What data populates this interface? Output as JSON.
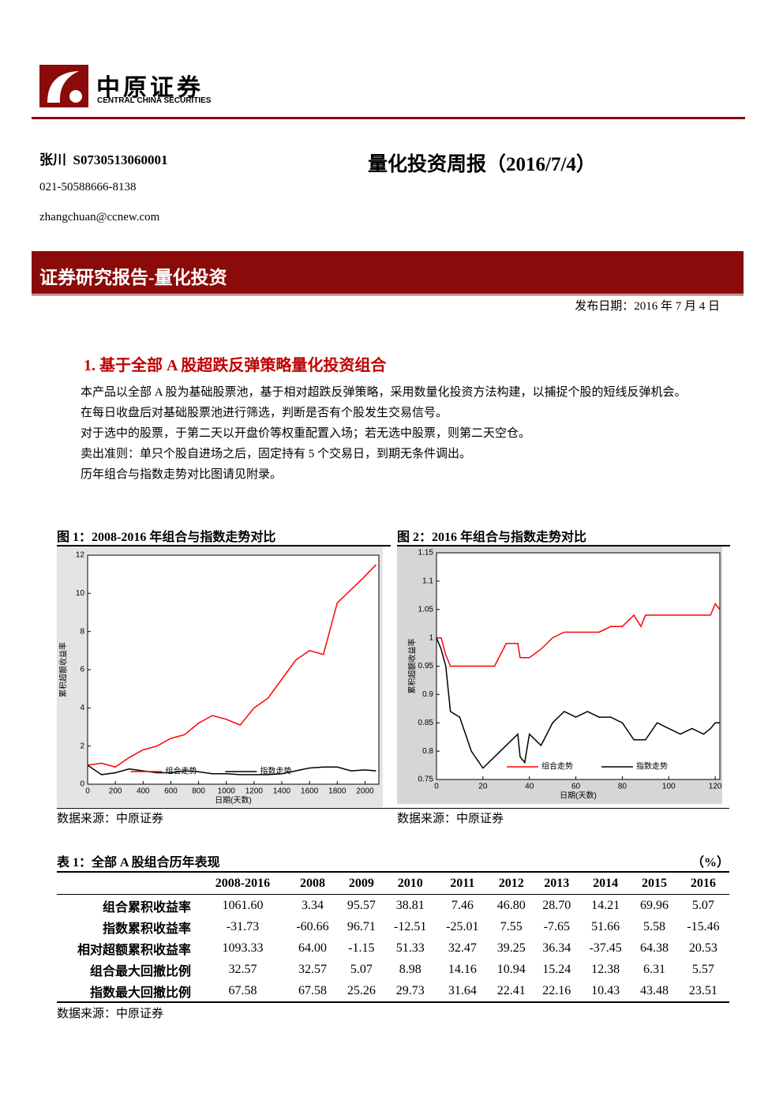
{
  "header": {
    "logo_cn": "中原证券",
    "logo_en": "CENTRAL CHINA SECURITIES",
    "author": "张川  S0730513060001",
    "phone": "021-50588666-8138",
    "email": "zhangchuan@ccnew.com",
    "title": "量化投资周报（2016/7/4）",
    "banner": "证券研究报告-量化投资",
    "date": "发布日期：2016 年 7 月 4 日"
  },
  "section": {
    "heading": "1. 基于全部 A 股超跌反弹策略量化投资组合",
    "paragraphs": [
      "本产品以全部 A 股为基础股票池，基于相对超跌反弹策略，采用数量化投资方法构建，以捕捉个股的短线反弹机会。",
      "在每日收盘后对基础股票池进行筛选，判断是否有个股发生交易信号。",
      "对于选中的股票，于第二天以开盘价等权重配置入场；若无选中股票，则第二天空仓。",
      "卖出准则：单只个股自进场之后，固定持有 5 个交易日，到期无条件调出。",
      "历年组合与指数走势对比图请见附录。"
    ]
  },
  "chart_data": [
    {
      "type": "line",
      "title": "图 1：2008-2016 年组合与指数走势对比",
      "source": "数据来源：中原证券",
      "xlabel": "日期(天数)",
      "ylabel": "累积超额收益率",
      "x": [
        0,
        100,
        200,
        300,
        400,
        500,
        600,
        700,
        800,
        900,
        1000,
        1100,
        1200,
        1300,
        1400,
        1500,
        1600,
        1700,
        1800,
        1900,
        2000,
        2080
      ],
      "series": [
        {
          "name": "组合走势",
          "color": "#ff0000",
          "values": [
            1.0,
            1.1,
            0.9,
            1.4,
            1.8,
            2.0,
            2.4,
            2.6,
            3.2,
            3.6,
            3.4,
            3.1,
            4.0,
            4.5,
            5.5,
            6.5,
            7.0,
            6.8,
            9.5,
            10.2,
            10.9,
            11.5
          ]
        },
        {
          "name": "指数走势",
          "color": "#000000",
          "values": [
            1.0,
            0.5,
            0.6,
            0.8,
            0.7,
            0.6,
            0.6,
            0.7,
            0.65,
            0.55,
            0.55,
            0.5,
            0.5,
            0.5,
            0.55,
            0.7,
            0.85,
            0.9,
            0.9,
            0.7,
            0.75,
            0.7
          ]
        }
      ],
      "xlim": [
        0,
        2100
      ],
      "ylim": [
        0,
        12
      ],
      "xticks": [
        0,
        200,
        400,
        600,
        800,
        1000,
        1200,
        1400,
        1600,
        1800,
        2000
      ],
      "yticks": [
        0,
        2,
        4,
        6,
        8,
        10,
        12
      ],
      "legend": "lower center"
    },
    {
      "type": "line",
      "title": "图 2：2016 年组合与指数走势对比",
      "source": "数据来源：中原证券",
      "xlabel": "日期(天数)",
      "ylabel": "累积超额收益率",
      "x": [
        0,
        2,
        4,
        6,
        10,
        15,
        20,
        25,
        30,
        35,
        36,
        38,
        40,
        45,
        50,
        55,
        60,
        65,
        70,
        75,
        80,
        85,
        88,
        90,
        95,
        100,
        105,
        110,
        115,
        118,
        120,
        122
      ],
      "series": [
        {
          "name": "组合走势",
          "color": "#ff0000",
          "values": [
            1,
            1,
            0.97,
            0.95,
            0.95,
            0.95,
            0.95,
            0.95,
            0.99,
            0.99,
            0.965,
            0.965,
            0.965,
            0.98,
            1.0,
            1.01,
            1.01,
            1.01,
            1.01,
            1.02,
            1.02,
            1.04,
            1.02,
            1.04,
            1.04,
            1.04,
            1.04,
            1.04,
            1.04,
            1.04,
            1.06,
            1.05
          ]
        },
        {
          "name": "指数走势",
          "color": "#000000",
          "values": [
            1,
            0.98,
            0.95,
            0.87,
            0.86,
            0.8,
            0.77,
            0.79,
            0.81,
            0.83,
            0.79,
            0.78,
            0.83,
            0.81,
            0.85,
            0.87,
            0.86,
            0.87,
            0.86,
            0.86,
            0.85,
            0.82,
            0.82,
            0.82,
            0.85,
            0.84,
            0.83,
            0.84,
            0.83,
            0.84,
            0.85,
            0.85
          ]
        }
      ],
      "xlim": [
        0,
        122
      ],
      "ylim": [
        0.75,
        1.15
      ],
      "xticks": [
        0,
        20,
        40,
        60,
        80,
        100,
        120
      ],
      "yticks": [
        0.75,
        0.8,
        0.85,
        0.9,
        0.95,
        1,
        1.05,
        1.1,
        1.15
      ],
      "legend": "lower right"
    }
  ],
  "table": {
    "caption": "表 1：全部 A 股组合历年表现",
    "unit": "（%）",
    "source": "数据来源：中原证券",
    "columns": [
      "2008-2016",
      "2008",
      "2009",
      "2010",
      "2011",
      "2012",
      "2013",
      "2014",
      "2015",
      "2016"
    ],
    "rows": [
      [
        "组合累积收益率",
        "1061.60",
        "3.34",
        "95.57",
        "38.81",
        "7.46",
        "46.80",
        "28.70",
        "14.21",
        "69.96",
        "5.07"
      ],
      [
        "指数累积收益率",
        "-31.73",
        "-60.66",
        "96.71",
        "-12.51",
        "-25.01",
        "7.55",
        "-7.65",
        "51.66",
        "5.58",
        "-15.46"
      ],
      [
        "相对超额累积收益率",
        "1093.33",
        "64.00",
        "-1.15",
        "51.33",
        "32.47",
        "39.25",
        "36.34",
        "-37.45",
        "64.38",
        "20.53"
      ],
      [
        "组合最大回撤比例",
        "32.57",
        "32.57",
        "5.07",
        "8.98",
        "14.16",
        "10.94",
        "15.24",
        "12.38",
        "6.31",
        "5.57"
      ],
      [
        "指数最大回撤比例",
        "67.58",
        "67.58",
        "25.26",
        "29.73",
        "31.64",
        "22.41",
        "22.16",
        "10.43",
        "43.48",
        "23.51"
      ]
    ]
  }
}
